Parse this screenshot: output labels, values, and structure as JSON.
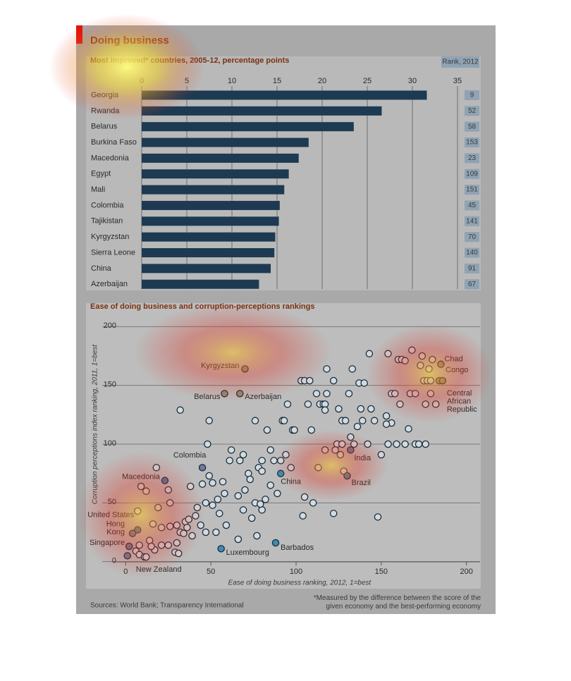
{
  "chart_data": [
    {
      "type": "bar",
      "title": "Doing business",
      "subtitle": "Most improved* countries, 2005-12, percentage points",
      "rank_label": "Rank, 2012",
      "categories": [
        "Georgia",
        "Rwanda",
        "Belarus",
        "Burkina Faso",
        "Macedonia",
        "Egypt",
        "Mali",
        "Colombia",
        "Tajikistan",
        "Kyrgyzstan",
        "Sierra Leone",
        "China",
        "Azerbaijan"
      ],
      "values": [
        31.6,
        26.6,
        23.5,
        18.5,
        17.4,
        16.3,
        15.8,
        15.3,
        15.2,
        14.8,
        14.7,
        14.3,
        13.0
      ],
      "ranks": [
        9,
        52,
        58,
        153,
        23,
        109,
        151,
        45,
        141,
        70,
        140,
        91,
        67
      ],
      "color": "#1d3a52",
      "xlim": [
        0,
        35
      ],
      "xticks": [
        0,
        5,
        10,
        15,
        20,
        25,
        30,
        35
      ],
      "grid": true
    },
    {
      "type": "scatter",
      "title": "Ease of doing business and corruption-perceptions rankings",
      "x_label": "Ease of doing business ranking, 2012, 1=best",
      "y_label": "Corruption perceptions index ranking, 2011, 1=best",
      "source": "Sources: World Bank; Transparency International",
      "note": "*Measured by the difference between the score of the given economy and the best-performing economy",
      "xlim": [
        -8,
        208
      ],
      "xticks": [
        0,
        50,
        100,
        150,
        200
      ],
      "ylim": [
        -5,
        205
      ],
      "yticks": [
        0,
        50,
        100,
        150,
        200
      ],
      "grid": true,
      "series": [
        {
          "color": "#d3dbe0",
          "x": [
            143,
            154,
            160,
            162,
            168,
            174,
            164,
            180,
            173,
            178,
            175,
            177,
            179,
            167,
            170,
            179,
            156,
            158,
            161,
            176,
            182,
            153,
            156,
            153,
            166,
            154,
            159,
            164,
            170,
            172,
            176,
            150,
            118,
            133,
            103,
            105,
            108,
            122,
            137,
            140,
            112,
            118,
            131,
            95,
            107,
            114,
            116,
            117,
            125,
            138,
            144,
            117,
            127,
            129,
            139,
            146,
            92,
            93,
            76,
            83,
            98,
            99,
            109,
            136,
            132,
            124,
            127,
            134,
            142,
            117,
            123,
            126,
            128,
            32,
            49,
            48,
            62,
            69,
            61,
            67,
            85,
            80,
            87,
            91,
            94,
            78,
            80,
            72,
            73,
            70,
            66,
            57,
            49,
            51,
            45,
            38,
            58,
            54,
            47,
            51,
            42,
            76,
            80,
            69,
            74,
            97,
            85,
            89,
            82,
            79,
            113,
            105,
            110,
            104,
            122,
            148,
            18,
            9,
            12,
            25,
            26,
            19,
            7,
            16,
            21,
            26,
            30,
            35,
            37,
            36,
            41,
            44,
            55,
            59,
            53,
            32,
            34,
            39,
            30,
            25,
            21,
            17,
            14,
            15,
            6,
            8,
            11,
            12,
            29,
            31,
            8,
            77,
            66,
            47
          ],
          "values": [
            177,
            177,
            172,
            172,
            180,
            175,
            171,
            172,
            167,
            164,
            154,
            154,
            154,
            143,
            143,
            143,
            143,
            143,
            134,
            134,
            134,
            124,
            118,
            117,
            113,
            100,
            100,
            100,
            100,
            100,
            100,
            91,
            164,
            164,
            154,
            154,
            154,
            154,
            152,
            152,
            143,
            143,
            143,
            134,
            134,
            134,
            134,
            134,
            130,
            130,
            130,
            129,
            120,
            120,
            120,
            120,
            120,
            120,
            120,
            112,
            112,
            112,
            112,
            115,
            106,
            100,
            100,
            100,
            100,
            95,
            95,
            91,
            77,
            129,
            120,
            100,
            95,
            91,
            86,
            86,
            95,
            86,
            86,
            86,
            91,
            80,
            77,
            75,
            70,
            61,
            56,
            68,
            73,
            67,
            66,
            64,
            58,
            53,
            50,
            48,
            46,
            50,
            44,
            44,
            37,
            80,
            65,
            58,
            53,
            49,
            80,
            55,
            50,
            39,
            41,
            38,
            80,
            64,
            60,
            61,
            50,
            46,
            43,
            32,
            29,
            30,
            31,
            34,
            36,
            29,
            39,
            31,
            41,
            31,
            25,
            25,
            24,
            22,
            16,
            14,
            14,
            10,
            18,
            13,
            9,
            6,
            4,
            4,
            8,
            7,
            14,
            22,
            19,
            25
          ]
        },
        {
          "color": "#5e87a6",
          "labels": [
            "Kyrgyzstan",
            "Belarus",
            "Azerbaijan",
            "Chad",
            "Congo",
            "Central African Republic",
            "Colombia",
            "India",
            "Macedonia",
            "China",
            "Brazil",
            "United States",
            "Hong Kong",
            "Singapore",
            "New Zealand",
            "Luxembourg",
            "Barbados"
          ],
          "x": [
            70,
            58,
            67,
            185,
            184,
            186,
            45,
            132,
            23,
            91,
            130,
            7,
            4,
            2,
            1,
            56,
            88
          ],
          "values": [
            164,
            143,
            143,
            168,
            154,
            154,
            80,
            95,
            69,
            75,
            73,
            27,
            24,
            13,
            5,
            11,
            16
          ]
        }
      ]
    }
  ]
}
